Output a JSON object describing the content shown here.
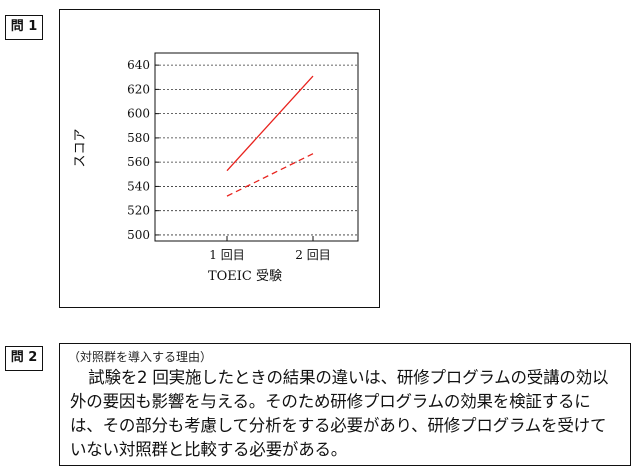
{
  "question1": {
    "label": "問 1"
  },
  "question2": {
    "label": "問 2",
    "caption": "（対照群を導入する理由）",
    "text": "試験を2 回実施したときの結果の違いは、研修プログラムの受講の効以外の要因も影響を与える。そのため研修プログラムの効果を検証するには、その部分も考慮して分析をする必要があり、研修プログラムを受けていない対照群と比較する必要がある。"
  },
  "chart_data": {
    "type": "line",
    "xlabel": "TOEIC 受験",
    "ylabel": "スコア",
    "categories": [
      "1 回目",
      "2 回目"
    ],
    "y_ticks": [
      500,
      520,
      540,
      560,
      580,
      600,
      620,
      640
    ],
    "ylim": [
      495,
      650
    ],
    "grid": "horizontal-dashed",
    "series": [
      {
        "style": "solid",
        "color": "#e8231e",
        "values": [
          553,
          631
        ]
      },
      {
        "style": "dashed",
        "color": "#e8231e",
        "values": [
          532,
          567
        ]
      }
    ]
  }
}
